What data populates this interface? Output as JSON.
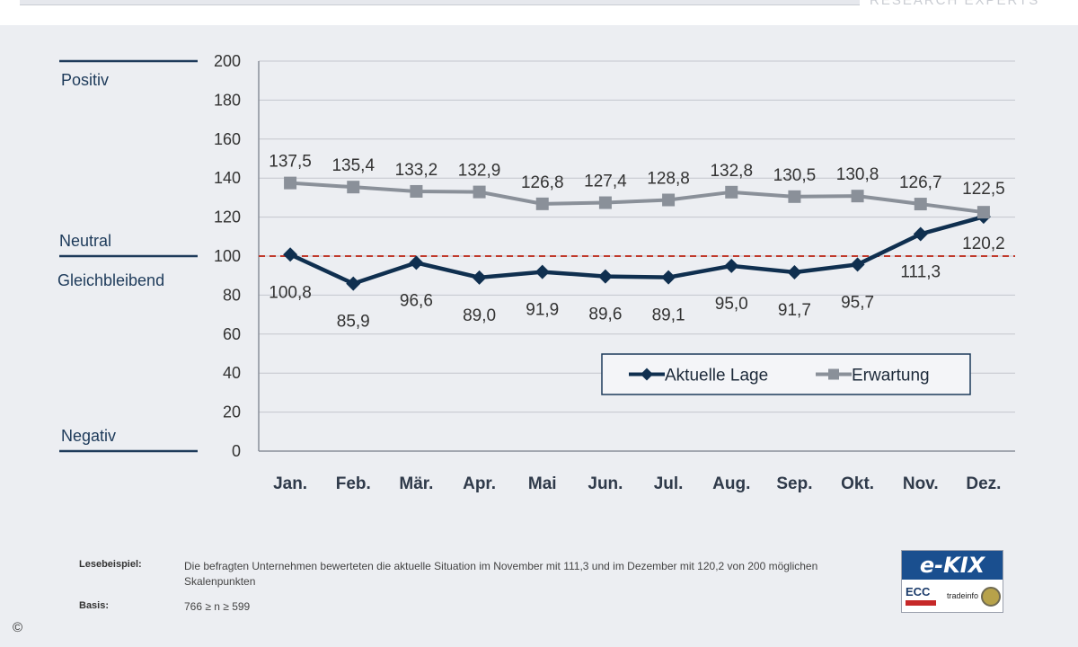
{
  "header": {
    "brand_tag": "RESEARCH EXPERTS"
  },
  "chart_data": {
    "type": "line",
    "categories": [
      "Jan.",
      "Feb.",
      "Mär.",
      "Apr.",
      "Mai",
      "Jun.",
      "Jul.",
      "Aug.",
      "Sep.",
      "Okt.",
      "Nov.",
      "Dez."
    ],
    "series": [
      {
        "name": "Aktuelle Lage",
        "values": [
          100.8,
          85.9,
          96.6,
          89.0,
          91.9,
          89.6,
          89.1,
          95.0,
          91.7,
          95.7,
          111.3,
          120.2
        ],
        "labels": [
          "100,8",
          "85,9",
          "96,6",
          "89,0",
          "91,9",
          "89,6",
          "89,1",
          "95,0",
          "91,7",
          "95,7",
          "111,3",
          "120,2"
        ],
        "color": "#0f2f4f",
        "marker": "diamond"
      },
      {
        "name": "Erwartung",
        "values": [
          137.5,
          135.4,
          133.2,
          132.9,
          126.8,
          127.4,
          128.8,
          132.8,
          130.5,
          130.8,
          126.7,
          122.5
        ],
        "labels": [
          "137,5",
          "135,4",
          "133,2",
          "132,9",
          "126,8",
          "127,4",
          "128,8",
          "132,8",
          "130,5",
          "130,8",
          "126,7",
          "122,5"
        ],
        "color": "#8a9099",
        "marker": "square"
      }
    ],
    "ylim": [
      0,
      200
    ],
    "yticks": [
      0,
      20,
      40,
      60,
      80,
      100,
      120,
      140,
      160,
      180,
      200
    ],
    "reference_line": {
      "value": 100,
      "color": "#c0392b",
      "style": "dashed"
    },
    "zone_labels": {
      "positive": "Positiv",
      "neutral": "Neutral",
      "constant": "Gleichbleibend",
      "negative": "Negativ"
    },
    "grid": true,
    "legend": "lower-right"
  },
  "footer": {
    "reading_example_label": "Lesebeispiel:",
    "reading_example_text": "Die befragten Unternehmen bewerteten die aktuelle Situation im November mit 111,3 und im Dezember mit 120,2 von 200 möglichen Skalenpunkten",
    "basis_label": "Basis:",
    "basis_text": "766 ≥ n ≥ 599",
    "logo_text": "e-KIX",
    "logo_ecc": "ECC",
    "logo_partner": "tradeinfo",
    "copyright": "©"
  }
}
